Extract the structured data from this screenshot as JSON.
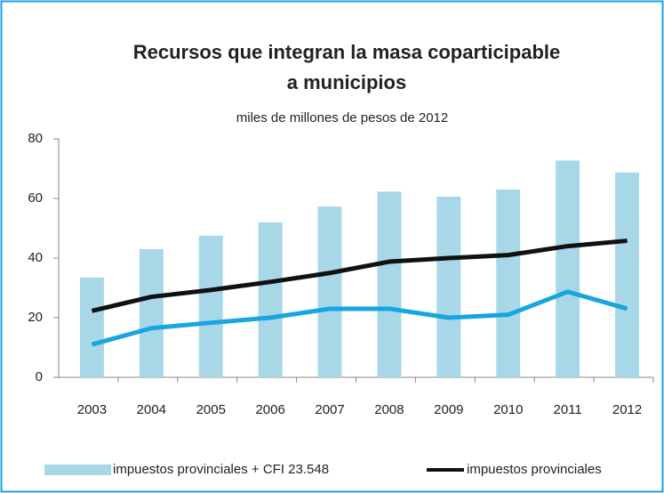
{
  "chart_data": {
    "type": "bar",
    "title": [
      "Recursos que integran la masa coparticipable",
      "a municipios"
    ],
    "subtitle": "miles de millones de pesos de 2012",
    "categories": [
      "2003",
      "2004",
      "2005",
      "2006",
      "2007",
      "2008",
      "2009",
      "2010",
      "2011",
      "2012"
    ],
    "series": [
      {
        "name": "impuestos provinciales + CFI 23.548",
        "type": "bar",
        "color": "#a8d8e8",
        "values": [
          33.5,
          43,
          47.5,
          52,
          57.3,
          62.3,
          60.6,
          63,
          72.7,
          68.7
        ]
      },
      {
        "name": "impuestos provinciales",
        "type": "line",
        "color": "#111111",
        "values": [
          22.3,
          27,
          29.3,
          32,
          35,
          38.8,
          40,
          41,
          44,
          45.8
        ]
      },
      {
        "type": "line",
        "color": "#17a6e0",
        "values": [
          11,
          16.5,
          18.3,
          20,
          23,
          23,
          20,
          21,
          28.7,
          23
        ]
      }
    ],
    "ylim": [
      0,
      80
    ],
    "yticks": [
      0,
      20,
      40,
      60,
      80
    ],
    "grid": false
  }
}
